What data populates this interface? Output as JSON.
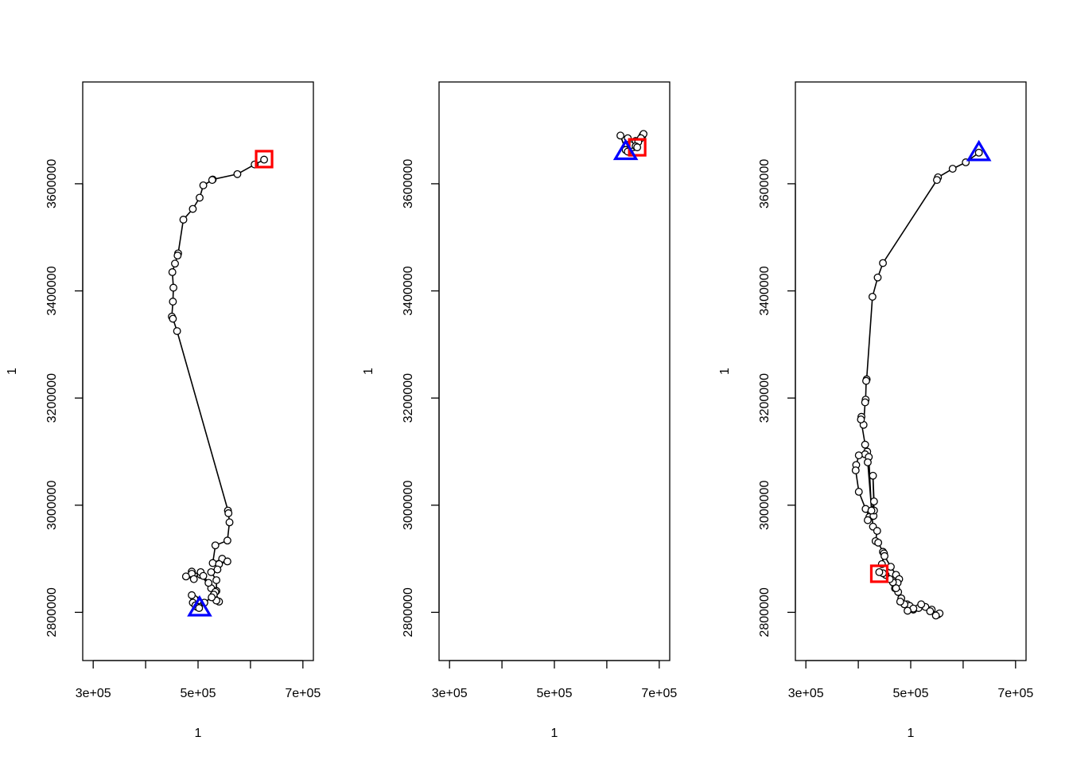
{
  "chart_data": [
    {
      "type": "line",
      "xlabel": "1",
      "ylabel": "1",
      "xlim": [
        280000,
        720000
      ],
      "ylim": [
        2710000,
        3790000
      ],
      "x_ticks": [
        300000,
        400000,
        500000,
        600000,
        700000
      ],
      "x_tick_labels": [
        "3e+05",
        "",
        "5e+05",
        "",
        "7e+05"
      ],
      "y_ticks": [
        2800000,
        3000000,
        3200000,
        3400000,
        3600000
      ],
      "y_tick_labels": [
        "2800000",
        "3000000",
        "3200000",
        "3400000",
        "3600000"
      ],
      "series": [
        {
          "color": "#000000",
          "x": [
            626000,
            608000,
            575000,
            528000,
            527000,
            510000,
            503000,
            490000,
            472000,
            462000,
            461000,
            456000,
            451000,
            453000,
            452000,
            450000,
            452000,
            460000,
            557000,
            558000,
            560000,
            556000,
            533000,
            528000,
            546000,
            556000,
            540000,
            537000,
            525000,
            535000,
            535000,
            525000,
            505000,
            488000,
            488000,
            477000,
            492000,
            505000,
            510000,
            520000,
            533000,
            540000,
            535000,
            530000,
            526000,
            512000,
            500000,
            493000,
            488000,
            490000,
            495000,
            498000,
            502000
          ],
          "y": [
            3645000,
            3636000,
            3618000,
            3608000,
            3607000,
            3597000,
            3574000,
            3553000,
            3533000,
            3470000,
            3466000,
            3451000,
            3435000,
            3406000,
            3380000,
            3352000,
            3348000,
            3325000,
            2990000,
            2985000,
            2968000,
            2934000,
            2925000,
            2892000,
            2900000,
            2895000,
            2890000,
            2880000,
            2875000,
            2860000,
            2840000,
            2845000,
            2870000,
            2876000,
            2872000,
            2867000,
            2862000,
            2875000,
            2868000,
            2855000,
            2838000,
            2820000,
            2822000,
            2833000,
            2828000,
            2818000,
            2822000,
            2825000,
            2832000,
            2818000,
            2813000,
            2810000,
            2808000
          ]
        }
      ],
      "start_marker": {
        "x": 503000,
        "y": 2808000,
        "shape": "triangle",
        "color": "#0000ff"
      },
      "end_marker": {
        "x": 626000,
        "y": 3646000,
        "shape": "square",
        "color": "#ff0000"
      }
    },
    {
      "type": "line",
      "xlabel": "1",
      "ylabel": "1",
      "xlim": [
        280000,
        720000
      ],
      "ylim": [
        2710000,
        3790000
      ],
      "x_ticks": [
        300000,
        400000,
        500000,
        600000,
        700000
      ],
      "x_tick_labels": [
        "3e+05",
        "",
        "5e+05",
        "",
        "7e+05"
      ],
      "y_ticks": [
        2800000,
        3000000,
        3200000,
        3400000,
        3600000
      ],
      "y_tick_labels": [
        "2800000",
        "3000000",
        "3200000",
        "3400000",
        "3600000"
      ],
      "series": [
        {
          "color": "#000000",
          "x": [
            636000,
            626000,
            640000,
            648000,
            655000,
            650000,
            645000,
            640000,
            660000,
            668000,
            670000,
            665000,
            660000,
            655000,
            658000
          ],
          "y": [
            3663000,
            3690000,
            3685000,
            3675000,
            3680000,
            3668000,
            3672000,
            3660000,
            3680000,
            3690000,
            3693000,
            3685000,
            3678000,
            3670000,
            3668000
          ]
        }
      ],
      "start_marker": {
        "x": 636000,
        "y": 3660000,
        "shape": "triangle",
        "color": "#0000ff"
      },
      "end_marker": {
        "x": 658000,
        "y": 3668000,
        "shape": "square",
        "color": "#ff0000"
      }
    },
    {
      "type": "line",
      "xlabel": "1",
      "ylabel": "1",
      "xlim": [
        280000,
        720000
      ],
      "ylim": [
        2710000,
        3790000
      ],
      "x_ticks": [
        300000,
        400000,
        500000,
        600000,
        700000
      ],
      "x_tick_labels": [
        "3e+05",
        "",
        "5e+05",
        "",
        "7e+05"
      ],
      "y_ticks": [
        2800000,
        3000000,
        3200000,
        3400000,
        3600000
      ],
      "y_tick_labels": [
        "2800000",
        "3000000",
        "3200000",
        "3400000",
        "3600000"
      ],
      "series": [
        {
          "color": "#000000",
          "x": [
            630000,
            605000,
            580000,
            552000,
            550000,
            447000,
            437000,
            427000,
            416000,
            415000,
            414000,
            413000,
            410000,
            406000,
            405000,
            413000,
            417000,
            413000,
            401000,
            396000,
            395000,
            401000,
            414000,
            421000,
            418000,
            429000,
            430000,
            428000,
            430000,
            425000,
            420000,
            418000,
            428000,
            436000,
            433000,
            438000,
            447000,
            449000,
            445000,
            450000,
            462000,
            472000,
            478000,
            475000,
            470000,
            476000,
            482000,
            493000,
            498000,
            505000,
            515000,
            528000,
            540000,
            552000,
            555000,
            548000,
            537000,
            520000,
            505000,
            494000,
            488000,
            480000,
            472000,
            466000,
            460000,
            452000,
            447000,
            440000
          ],
          "y": [
            3658000,
            3640000,
            3628000,
            3612000,
            3607000,
            3452000,
            3425000,
            3389000,
            3235000,
            3232000,
            3197000,
            3192000,
            3150000,
            3165000,
            3160000,
            3113000,
            3100000,
            3095000,
            3093000,
            3075000,
            3065000,
            3025000,
            2993000,
            2978000,
            2972000,
            2980000,
            2990000,
            3055000,
            3007000,
            2990000,
            3090000,
            3080000,
            2960000,
            2952000,
            2933000,
            2930000,
            2913000,
            2910000,
            2890000,
            2905000,
            2885000,
            2870000,
            2862000,
            2855000,
            2845000,
            2838000,
            2826000,
            2815000,
            2812000,
            2805000,
            2808000,
            2810000,
            2805000,
            2796000,
            2798000,
            2794000,
            2802000,
            2815000,
            2807000,
            2803000,
            2815000,
            2820000,
            2845000,
            2856000,
            2862000,
            2870000,
            2873000,
            2875000
          ]
        }
      ],
      "start_marker": {
        "x": 630000,
        "y": 3658000,
        "shape": "triangle",
        "color": "#0000ff"
      },
      "end_marker": {
        "x": 440000,
        "y": 2872000,
        "shape": "square",
        "color": "#ff0000"
      }
    }
  ]
}
